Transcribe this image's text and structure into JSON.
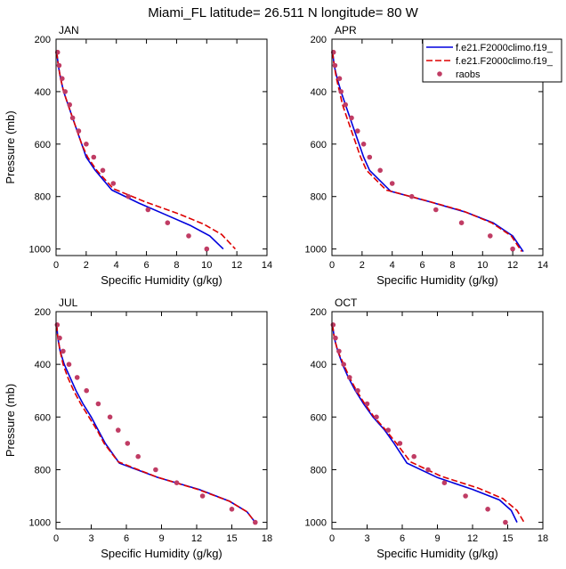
{
  "figure": {
    "title": "Miami_FL  latitude= 26.511 N longitude= 80 W"
  },
  "legend": {
    "entries": [
      {
        "label": "f.e21.F2000climo.f19_",
        "color": "#0000dd",
        "style": "solid"
      },
      {
        "label": "f.e21.F2000climo.f19_",
        "color": "#dd0000",
        "style": "dashed"
      },
      {
        "label": "raobs",
        "color": "#c03c64",
        "style": "marker"
      }
    ]
  },
  "chart_data": [
    {
      "type": "line",
      "panel": "JAN",
      "xlabel": "Specific Humidity (g/kg)",
      "ylabel": "Pressure (mb)",
      "xlim": [
        0,
        14
      ],
      "ylim": [
        1025,
        200
      ],
      "xticks": [
        0,
        2,
        4,
        6,
        8,
        10,
        12,
        14
      ],
      "yticks": [
        200,
        400,
        600,
        800,
        1000
      ],
      "series": [
        {
          "name": "f.e21.F2000climo.f19_",
          "style": "solid",
          "color": "#0000dd",
          "points": [
            [
              0.05,
              250
            ],
            [
              0.15,
              300
            ],
            [
              0.3,
              350
            ],
            [
              0.5,
              400
            ],
            [
              0.8,
              450
            ],
            [
              1.1,
              500
            ],
            [
              1.4,
              550
            ],
            [
              1.7,
              600
            ],
            [
              2.0,
              650
            ],
            [
              2.6,
              700
            ],
            [
              3.7,
              775
            ],
            [
              5.5,
              825
            ],
            [
              7.3,
              870
            ],
            [
              8.9,
              910
            ],
            [
              10.2,
              950
            ],
            [
              11.1,
              1000
            ]
          ]
        },
        {
          "name": "f.e21.F2000climo.f19_",
          "style": "dashed",
          "color": "#dd0000",
          "points": [
            [
              0.05,
              250
            ],
            [
              0.15,
              300
            ],
            [
              0.3,
              350
            ],
            [
              0.5,
              400
            ],
            [
              0.8,
              450
            ],
            [
              1.1,
              500
            ],
            [
              1.4,
              550
            ],
            [
              1.7,
              600
            ],
            [
              2.1,
              650
            ],
            [
              2.7,
              700
            ],
            [
              3.8,
              770
            ],
            [
              5.9,
              820
            ],
            [
              8.1,
              865
            ],
            [
              9.8,
              905
            ],
            [
              11.0,
              945
            ],
            [
              11.9,
              1000
            ]
          ]
        },
        {
          "name": "raobs",
          "style": "marker",
          "color": "#c03c64",
          "points": [
            [
              0.1,
              250
            ],
            [
              0.2,
              300
            ],
            [
              0.4,
              350
            ],
            [
              0.6,
              400
            ],
            [
              0.9,
              450
            ],
            [
              1.1,
              500
            ],
            [
              1.5,
              550
            ],
            [
              2.0,
              600
            ],
            [
              2.5,
              650
            ],
            [
              3.1,
              700
            ],
            [
              3.8,
              750
            ],
            [
              4.8,
              800
            ],
            [
              6.1,
              850
            ],
            [
              7.4,
              900
            ],
            [
              8.8,
              950
            ],
            [
              10.0,
              1000
            ]
          ]
        }
      ]
    },
    {
      "type": "line",
      "panel": "APR",
      "xlabel": "Specific Humidity (g/kg)",
      "ylabel": "",
      "xlim": [
        0,
        14
      ],
      "ylim": [
        1025,
        200
      ],
      "xticks": [
        0,
        2,
        4,
        6,
        8,
        10,
        12,
        14
      ],
      "yticks": [
        200,
        400,
        600,
        800,
        1000
      ],
      "series": [
        {
          "name": "f.e21.F2000climo.f19_",
          "style": "solid",
          "color": "#0000dd",
          "points": [
            [
              0.05,
              250
            ],
            [
              0.15,
              300
            ],
            [
              0.35,
              350
            ],
            [
              0.6,
              400
            ],
            [
              0.9,
              450
            ],
            [
              1.2,
              500
            ],
            [
              1.5,
              550
            ],
            [
              1.8,
              600
            ],
            [
              2.1,
              650
            ],
            [
              2.5,
              700
            ],
            [
              3.9,
              780
            ],
            [
              6.5,
              820
            ],
            [
              8.9,
              860
            ],
            [
              10.7,
              900
            ],
            [
              12.0,
              950
            ],
            [
              12.7,
              1010
            ]
          ]
        },
        {
          "name": "f.e21.F2000climo.f19_",
          "style": "dashed",
          "color": "#dd0000",
          "points": [
            [
              0.05,
              250
            ],
            [
              0.15,
              300
            ],
            [
              0.3,
              350
            ],
            [
              0.5,
              400
            ],
            [
              0.7,
              450
            ],
            [
              1.0,
              500
            ],
            [
              1.3,
              550
            ],
            [
              1.6,
              600
            ],
            [
              1.9,
              650
            ],
            [
              2.3,
              700
            ],
            [
              3.6,
              775
            ],
            [
              6.2,
              815
            ],
            [
              8.7,
              855
            ],
            [
              10.6,
              900
            ],
            [
              11.9,
              950
            ],
            [
              12.6,
              1010
            ]
          ]
        },
        {
          "name": "raobs",
          "style": "marker",
          "color": "#c03c64",
          "points": [
            [
              0.1,
              250
            ],
            [
              0.2,
              300
            ],
            [
              0.5,
              350
            ],
            [
              0.6,
              400
            ],
            [
              0.9,
              450
            ],
            [
              1.3,
              500
            ],
            [
              1.7,
              550
            ],
            [
              2.1,
              600
            ],
            [
              2.5,
              650
            ],
            [
              3.2,
              700
            ],
            [
              4.0,
              750
            ],
            [
              5.3,
              800
            ],
            [
              6.9,
              850
            ],
            [
              8.6,
              900
            ],
            [
              10.5,
              950
            ],
            [
              12.0,
              1000
            ]
          ]
        }
      ]
    },
    {
      "type": "line",
      "panel": "JUL",
      "xlabel": "Specific Humidity (g/kg)",
      "ylabel": "Pressure (mb)",
      "xlim": [
        0,
        18
      ],
      "ylim": [
        1025,
        200
      ],
      "xticks": [
        0,
        3,
        6,
        9,
        12,
        15,
        18
      ],
      "yticks": [
        200,
        400,
        600,
        800,
        1000
      ],
      "series": [
        {
          "name": "f.e21.F2000climo.f19_",
          "style": "solid",
          "color": "#0000dd",
          "points": [
            [
              0.05,
              250
            ],
            [
              0.15,
              300
            ],
            [
              0.35,
              350
            ],
            [
              0.7,
              400
            ],
            [
              1.2,
              450
            ],
            [
              1.7,
              500
            ],
            [
              2.3,
              550
            ],
            [
              3.0,
              600
            ],
            [
              3.6,
              650
            ],
            [
              4.2,
              700
            ],
            [
              5.4,
              775
            ],
            [
              8.7,
              830
            ],
            [
              12.2,
              875
            ],
            [
              14.8,
              920
            ],
            [
              16.3,
              960
            ],
            [
              17.0,
              1000
            ]
          ]
        },
        {
          "name": "f.e21.F2000climo.f19_",
          "style": "dashed",
          "color": "#dd0000",
          "points": [
            [
              0.05,
              250
            ],
            [
              0.15,
              300
            ],
            [
              0.35,
              350
            ],
            [
              0.6,
              400
            ],
            [
              1.0,
              450
            ],
            [
              1.5,
              500
            ],
            [
              2.1,
              550
            ],
            [
              2.8,
              600
            ],
            [
              3.5,
              650
            ],
            [
              4.1,
              700
            ],
            [
              5.3,
              770
            ],
            [
              8.6,
              828
            ],
            [
              12.1,
              875
            ],
            [
              14.8,
              920
            ],
            [
              16.3,
              960
            ],
            [
              17.0,
              1000
            ]
          ]
        },
        {
          "name": "raobs",
          "style": "marker",
          "color": "#c03c64",
          "points": [
            [
              0.1,
              250
            ],
            [
              0.3,
              300
            ],
            [
              0.6,
              350
            ],
            [
              1.1,
              400
            ],
            [
              1.8,
              450
            ],
            [
              2.6,
              500
            ],
            [
              3.6,
              550
            ],
            [
              4.6,
              600
            ],
            [
              5.3,
              650
            ],
            [
              6.1,
              700
            ],
            [
              7.0,
              750
            ],
            [
              8.5,
              800
            ],
            [
              10.3,
              850
            ],
            [
              12.5,
              900
            ],
            [
              15.0,
              950
            ],
            [
              17.0,
              1000
            ]
          ]
        }
      ]
    },
    {
      "type": "line",
      "panel": "OCT",
      "xlabel": "Specific Humidity (g/kg)",
      "ylabel": "",
      "xlim": [
        0,
        18
      ],
      "ylim": [
        1025,
        200
      ],
      "xticks": [
        0,
        3,
        6,
        9,
        12,
        15,
        18
      ],
      "yticks": [
        200,
        400,
        600,
        800,
        1000
      ],
      "series": [
        {
          "name": "f.e21.F2000climo.f19_",
          "style": "solid",
          "color": "#0000dd",
          "points": [
            [
              0.05,
              250
            ],
            [
              0.2,
              300
            ],
            [
              0.5,
              350
            ],
            [
              0.9,
              400
            ],
            [
              1.4,
              450
            ],
            [
              2.0,
              500
            ],
            [
              2.7,
              550
            ],
            [
              3.5,
              600
            ],
            [
              4.5,
              650
            ],
            [
              5.3,
              700
            ],
            [
              6.4,
              775
            ],
            [
              9.0,
              830
            ],
            [
              12.0,
              875
            ],
            [
              14.3,
              915
            ],
            [
              15.3,
              955
            ],
            [
              15.8,
              1000
            ]
          ]
        },
        {
          "name": "f.e21.F2000climo.f19_",
          "style": "dashed",
          "color": "#dd0000",
          "points": [
            [
              0.05,
              250
            ],
            [
              0.2,
              300
            ],
            [
              0.5,
              350
            ],
            [
              1.0,
              400
            ],
            [
              1.5,
              450
            ],
            [
              2.1,
              500
            ],
            [
              2.8,
              550
            ],
            [
              3.6,
              600
            ],
            [
              4.6,
              650
            ],
            [
              5.5,
              700
            ],
            [
              6.7,
              770
            ],
            [
              9.3,
              825
            ],
            [
              12.5,
              870
            ],
            [
              14.6,
              910
            ],
            [
              15.8,
              955
            ],
            [
              16.4,
              1000
            ]
          ]
        },
        {
          "name": "raobs",
          "style": "marker",
          "color": "#c03c64",
          "points": [
            [
              0.1,
              250
            ],
            [
              0.3,
              300
            ],
            [
              0.6,
              350
            ],
            [
              1.0,
              400
            ],
            [
              1.5,
              450
            ],
            [
              2.2,
              500
            ],
            [
              3.0,
              550
            ],
            [
              3.8,
              600
            ],
            [
              4.8,
              650
            ],
            [
              5.8,
              700
            ],
            [
              7.0,
              750
            ],
            [
              8.2,
              800
            ],
            [
              9.6,
              850
            ],
            [
              11.4,
              900
            ],
            [
              13.3,
              950
            ],
            [
              14.8,
              1000
            ]
          ]
        }
      ]
    }
  ]
}
